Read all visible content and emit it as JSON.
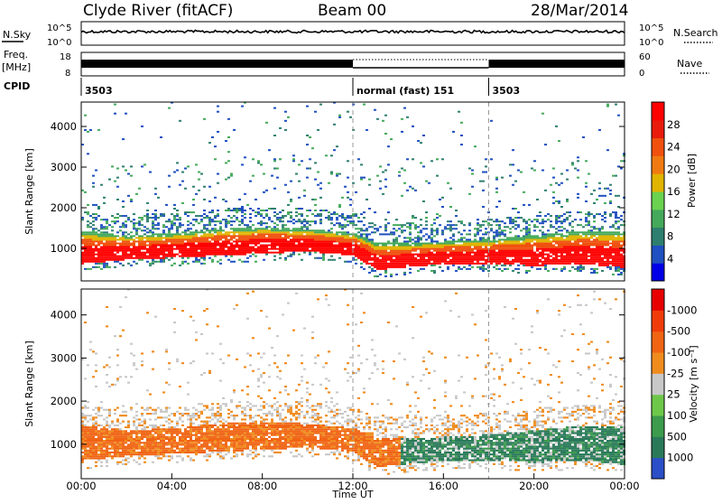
{
  "header": {
    "station": "Clyde River (fitACF)",
    "beam": "Beam 00",
    "date": "28/Mar/2014"
  },
  "strips": {
    "nsky_label": "N.Sky",
    "nsky_ticks": [
      "10^5",
      "10^0"
    ],
    "nsearch_label": "N.Search",
    "nsearch_ticks": [
      "10^5",
      "10^0"
    ],
    "freq_label": "Freq.",
    "freq_unit": "[MHz]",
    "freq_ticks": [
      "18",
      "8"
    ],
    "nave_label": "Nave",
    "nave_ticks": [
      "60",
      "0"
    ],
    "cpid_label": "CPID",
    "cpid_segments": [
      {
        "start_h": 0,
        "label": "3503"
      },
      {
        "start_h": 12,
        "label": "normal (fast) 151"
      },
      {
        "start_h": 18,
        "label": "3503"
      }
    ]
  },
  "chart_data": [
    {
      "type": "heatmap",
      "name": "power",
      "ylabel": "Slant Range [km]",
      "ylim": [
        200,
        4600
      ],
      "yticks": [
        "1000",
        "2000",
        "3000",
        "4000"
      ],
      "xlim": [
        0,
        24
      ],
      "colorbar_label": "Power [dB]",
      "colorbar_ticks": [
        "4",
        "8",
        "12",
        "16",
        "20",
        "24",
        "28"
      ],
      "colorbar_colors": [
        "#0000e8",
        "#1f4fc0",
        "#2e7f6f",
        "#44a95a",
        "#6ad24f",
        "#e0b400",
        "#f07a12",
        "#f0510f",
        "#e81b0c",
        "#ff0000"
      ],
      "dashed_lines_h": [
        12,
        18
      ],
      "band": [
        {
          "t": 0,
          "lo": 600,
          "hi": 1400
        },
        {
          "t": 2,
          "lo": 700,
          "hi": 1300
        },
        {
          "t": 4,
          "lo": 750,
          "hi": 1350
        },
        {
          "t": 6,
          "lo": 800,
          "hi": 1450
        },
        {
          "t": 8,
          "lo": 850,
          "hi": 1500
        },
        {
          "t": 10,
          "lo": 900,
          "hi": 1450
        },
        {
          "t": 12,
          "lo": 800,
          "hi": 1350
        },
        {
          "t": 13,
          "lo": 450,
          "hi": 1100
        },
        {
          "t": 14,
          "lo": 500,
          "hi": 1100
        },
        {
          "t": 16,
          "lo": 600,
          "hi": 1150
        },
        {
          "t": 18,
          "lo": 600,
          "hi": 1200
        },
        {
          "t": 20,
          "lo": 550,
          "hi": 1300
        },
        {
          "t": 22,
          "lo": 600,
          "hi": 1400
        },
        {
          "t": 24,
          "lo": 500,
          "hi": 1400
        }
      ]
    },
    {
      "type": "heatmap",
      "name": "velocity",
      "ylabel": "Slant Range [km]",
      "ylim": [
        200,
        4600
      ],
      "yticks": [
        "1000",
        "2000",
        "3000",
        "4000"
      ],
      "xlim": [
        0,
        24
      ],
      "xticks": [
        "00:00",
        "04:00",
        "08:00",
        "12:00",
        "16:00",
        "20:00",
        "00:00"
      ],
      "xlabel": "Time UT",
      "colorbar_label": "Velocity [m s⁻¹]",
      "colorbar_ticks": [
        "1000",
        "500",
        "100",
        "25",
        "-25",
        "-100",
        "-500",
        "-1000"
      ],
      "colorbar_colors": [
        "#2a4fc8",
        "#2a7a5a",
        "#3c9b4d",
        "#6dc84a",
        "#c8c8c8",
        "#f08c1e",
        "#f06414",
        "#f03c0a",
        "#e80000"
      ],
      "dashed_lines_h": [
        12,
        18
      ]
    }
  ]
}
